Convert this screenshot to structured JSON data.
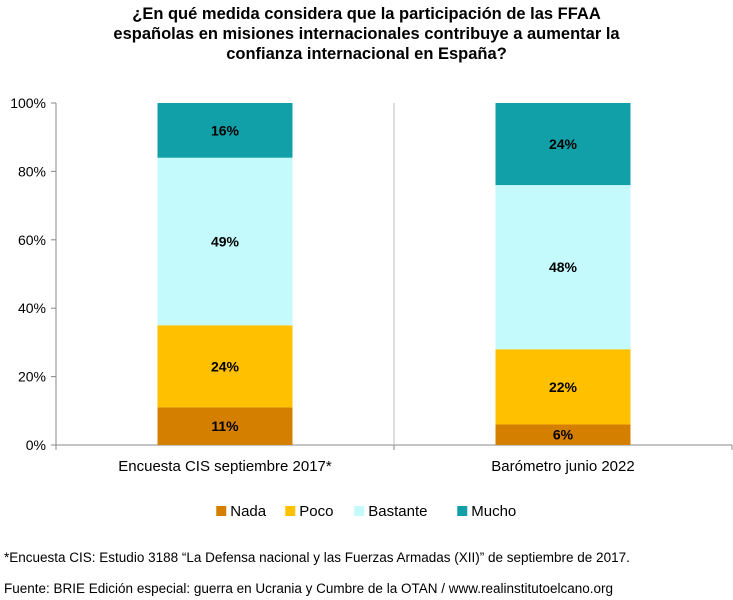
{
  "title_lines": [
    "¿En qué medida considera que la participación de las FFAA",
    "españolas en misiones internacionales contribuye a aumentar la",
    "confianza internacional en España?"
  ],
  "chart_data": {
    "type": "bar",
    "stacked": true,
    "title": "¿En qué medida considera que la participación de las FFAA españolas en misiones internacionales contribuye a aumentar la confianza internacional en España?",
    "categories": [
      "Encuesta CIS septiembre 2017*",
      "Barómetro junio 2022"
    ],
    "series": [
      {
        "name": "Nada",
        "color": "#D47F00",
        "values": [
          11,
          6
        ],
        "labels": [
          "11%",
          "6%"
        ]
      },
      {
        "name": "Poco",
        "color": "#FFC000",
        "values": [
          24,
          22
        ],
        "labels": [
          "24%",
          "22%"
        ]
      },
      {
        "name": "Bastante",
        "color": "#C5FAFD",
        "values": [
          49,
          48
        ],
        "labels": [
          "49%",
          "48%"
        ]
      },
      {
        "name": "Mucho",
        "color": "#12A0A8",
        "values": [
          16,
          24
        ],
        "labels": [
          "16%",
          "24%"
        ]
      }
    ],
    "ylim": [
      0,
      100
    ],
    "yticks": [
      "0%",
      "20%",
      "40%",
      "60%",
      "80%",
      "100%"
    ],
    "grid": "vertical separators",
    "legend": "bottom"
  },
  "footnote": "*Encuesta CIS: Estudio 3188 “La Defensa nacional y las Fuerzas Armadas (XII)” de septiembre de 2017.",
  "source": "Fuente: BRIE Edición especial: guerra en Ucrania y Cumbre de la OTAN / www.realinstitutoelcano.org"
}
